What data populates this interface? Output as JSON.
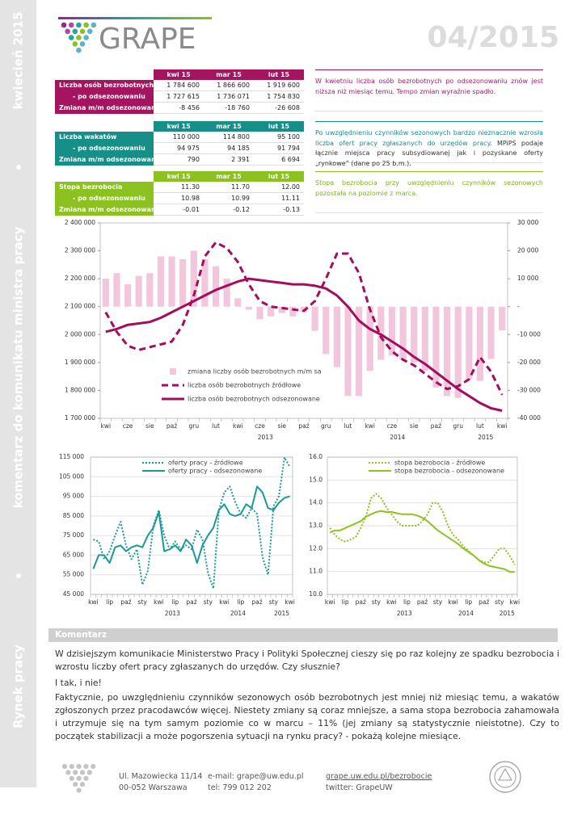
{
  "sidebar": {
    "date": "kwiecień 2015",
    "subject": "komentarz do komunikatu ministra pracy",
    "section": "Rynek pracy"
  },
  "header": {
    "logo": "GRAPE",
    "issue": "04/2015"
  },
  "tables": [
    {
      "columns": [
        "kwi 15",
        "mar 15",
        "lut 15"
      ],
      "rows": [
        {
          "label": "Liczba osób bezrobotnych",
          "values": [
            "1 784 600",
            "1 866 600",
            "1 919 600"
          ]
        },
        {
          "label": "- po odsezonowaniu",
          "values": [
            "1 727 615",
            "1 736 071",
            "1 754 830"
          ]
        },
        {
          "label": "Zmiana m/m odsezonowana",
          "values": [
            "-8 456",
            "-18 760",
            "-26 608"
          ]
        }
      ],
      "comment": [
        "W kwietniu liczba osób bezrobotnych po odsezonowaniu znów jest niższa niż miesiąc temu. Tempo zmian wyraźnie spadło."
      ]
    },
    {
      "columns": [
        "kwi 15",
        "mar 15",
        "lut 15"
      ],
      "rows": [
        {
          "label": "Liczba wakatów",
          "values": [
            "110 000",
            "114 800",
            "95 100"
          ]
        },
        {
          "label": "- po odsezonowaniu",
          "values": [
            "94 975",
            "94 185",
            "91 794"
          ]
        },
        {
          "label": "Zmiana m/m odsezonowana",
          "values": [
            "790",
            "2 391",
            "6 694"
          ]
        }
      ],
      "comment": [
        "Po uwzględnieniu czynników sezonowych bardzo nieznacznie wzrosła liczba ofert pracy zgłaszanych do urzędów pracy.",
        "MPiPS podaje łącznie miejsca pracy subsydiowanej jak i pozyskane oferty „rynkowe” (dane po 25 b.m.)."
      ]
    },
    {
      "columns": [
        "kwi 15",
        "mar 15",
        "lut 15"
      ],
      "rows": [
        {
          "label": "Stopa bezrobocia",
          "values": [
            "11.30",
            "11.70",
            "12.00"
          ]
        },
        {
          "label": "- po odsezonowaniu",
          "values": [
            "10.98",
            "10.99",
            "11.11"
          ]
        },
        {
          "label": "Zmiana m/m odsezonowana",
          "values": [
            "-0.01",
            "-0.12",
            "-0.13"
          ]
        }
      ],
      "comment": [
        "Stopa bezrobocia przy uwzględnieniu czynników sezonowych pozostała na poziomie z marca."
      ]
    }
  ],
  "chart_data": [
    {
      "type": "combo",
      "grid": false,
      "categories": [
        "kwi",
        null,
        "cze",
        null,
        "sie",
        null,
        "paź",
        null,
        "gru",
        null,
        "lut",
        null,
        "kwi",
        null,
        "cze",
        null,
        "sie",
        null,
        "paź",
        null,
        "gru",
        null,
        "lut",
        null,
        "kwi",
        null,
        "cze",
        null,
        "sie",
        null,
        "paź",
        null,
        "gru",
        null,
        "lut",
        null,
        "kwi"
      ],
      "year_labels": [
        "2013",
        "2014",
        "2015"
      ],
      "ylim": [
        1700000,
        2400000
      ],
      "yticks": [
        {
          "value": 1700000,
          "label": "1 700 000"
        },
        {
          "value": 1800000,
          "label": "1 800 000"
        },
        {
          "value": 1900000,
          "label": "1 900 000"
        },
        {
          "value": 2000000,
          "label": "2 000 000"
        },
        {
          "value": 2100000,
          "label": "2 100 000"
        },
        {
          "value": 2200000,
          "label": "2 200 000"
        },
        {
          "value": 2300000,
          "label": "2 300 000"
        },
        {
          "value": 2400000,
          "label": "2 400 000"
        }
      ],
      "y2lim": [
        -40000,
        30000
      ],
      "y2ticks": [
        {
          "value": -40000,
          "label": "-40 000"
        },
        {
          "value": -30000,
          "label": "-30 000"
        },
        {
          "value": -20000,
          "label": "-20 000"
        },
        {
          "value": -10000,
          "label": "-10 000"
        },
        {
          "value": 0,
          "label": "-"
        },
        {
          "value": 10000,
          "label": "10 000"
        },
        {
          "value": 20000,
          "label": "20 000"
        },
        {
          "value": 30000,
          "label": "30 000"
        }
      ],
      "series": [
        {
          "name": "zmiana liczby osób bezrobotnych m/m sa",
          "type": "bar",
          "style": "solid",
          "axis": "y2",
          "color": "#f2c6dc",
          "values": [
            10000,
            12000,
            8000,
            11000,
            12000,
            18000,
            18000,
            17000,
            20000,
            17000,
            14500,
            10000,
            3000,
            -1000,
            -4500,
            -3500,
            -2300,
            -3500,
            -2000,
            -8700,
            -17000,
            -21700,
            -32000,
            -32000,
            -23000,
            -19000,
            -17500,
            -19000,
            -20000,
            -23000,
            -29000,
            -32000,
            -32700,
            -26000,
            -26608,
            -18760,
            -8456
          ]
        },
        {
          "name": "liczba osób bezrobotnych źródłowe",
          "type": "line",
          "style": "dashed",
          "color": "#a30d5d",
          "values": [
            2080000,
            2010000,
            1960000,
            1945000,
            1955000,
            1965000,
            1975000,
            2035000,
            2140000,
            2280000,
            2330000,
            2310000,
            2260000,
            2180000,
            2120000,
            2100000,
            2095000,
            2090000,
            2085000,
            2120000,
            2200000,
            2290000,
            2290000,
            2220000,
            2090000,
            1990000,
            1940000,
            1910000,
            1890000,
            1860000,
            1830000,
            1805000,
            1815000,
            1840000,
            1919600,
            1866600,
            1784600
          ]
        },
        {
          "name": "liczba osób bezrobotnych odsezonowane",
          "type": "line",
          "style": "solid",
          "color": "#a30d5d",
          "values": [
            2010000,
            2020000,
            2035000,
            2040000,
            2045000,
            2060000,
            2080000,
            2100000,
            2120000,
            2140000,
            2160000,
            2175000,
            2190000,
            2200000,
            2195000,
            2190000,
            2185000,
            2180000,
            2180000,
            2175000,
            2165000,
            2140000,
            2100000,
            2050000,
            2020000,
            2000000,
            1975000,
            1950000,
            1920000,
            1895000,
            1865000,
            1835000,
            1805000,
            1780000,
            1754830,
            1736071,
            1727615
          ]
        }
      ]
    },
    {
      "type": "line",
      "grid": true,
      "categories": [
        "kwi",
        null,
        null,
        "lip",
        null,
        null,
        "paź",
        null,
        null,
        "sty",
        null,
        null,
        "kwi",
        null,
        null,
        "lip",
        null,
        null,
        "paź",
        null,
        null,
        "sty",
        null,
        null,
        "kwi",
        null,
        null,
        "lip",
        null,
        null,
        "paź",
        null,
        null,
        "sty",
        null,
        null,
        "kwi"
      ],
      "year_labels": [
        "2013",
        "2014",
        "2015"
      ],
      "ylim": [
        45000,
        115000
      ],
      "yticks": [
        {
          "value": 45000,
          "label": "45 000"
        },
        {
          "value": 55000,
          "label": "55 000"
        },
        {
          "value": 65000,
          "label": "65 000"
        },
        {
          "value": 75000,
          "label": "75 000"
        },
        {
          "value": 85000,
          "label": "85 000"
        },
        {
          "value": 95000,
          "label": "95 000"
        },
        {
          "value": 105000,
          "label": "105 000"
        },
        {
          "value": 115000,
          "label": "115 000"
        }
      ],
      "series": [
        {
          "name": "oferty pracy - źródłowe",
          "type": "line",
          "style": "dotted",
          "color": "#1a9a92",
          "values": [
            73000,
            72000,
            63000,
            67000,
            75000,
            82000,
            70000,
            63000,
            68000,
            50000,
            57000,
            80000,
            88000,
            75000,
            68000,
            72000,
            68000,
            70000,
            68000,
            78000,
            73000,
            56000,
            48000,
            88000,
            97000,
            100000,
            92000,
            86000,
            84000,
            89000,
            86000,
            64000,
            55000,
            90000,
            95100,
            114800,
            110000
          ]
        },
        {
          "name": "oferty pracy - odsezonowane",
          "type": "line",
          "style": "solid",
          "color": "#1a9a92",
          "values": [
            58000,
            65000,
            65000,
            61000,
            69000,
            70000,
            67000,
            69000,
            70000,
            69000,
            75000,
            79000,
            87000,
            67000,
            68000,
            70000,
            67000,
            73000,
            70000,
            61000,
            70000,
            75000,
            79000,
            88000,
            91000,
            86000,
            85000,
            86000,
            91000,
            89000,
            100000,
            97000,
            89000,
            88000,
            91794,
            94185,
            94975
          ]
        }
      ]
    },
    {
      "type": "line",
      "grid": true,
      "categories": [
        "kwi",
        null,
        null,
        "lip",
        null,
        null,
        "paź",
        null,
        null,
        "sty",
        null,
        null,
        "kwi",
        null,
        null,
        "lip",
        null,
        null,
        "paź",
        null,
        null,
        "sty",
        null,
        null,
        "kwi",
        null,
        null,
        "lip",
        null,
        null,
        "paź",
        null,
        null,
        "sty",
        null,
        null,
        "kwi"
      ],
      "year_labels": [
        "2013",
        "2014",
        "2015"
      ],
      "ylim": [
        10,
        16
      ],
      "yticks": [
        {
          "value": 10,
          "label": "10.0"
        },
        {
          "value": 11,
          "label": "11.0"
        },
        {
          "value": 12,
          "label": "12.0"
        },
        {
          "value": 13,
          "label": "13.0"
        },
        {
          "value": 14,
          "label": "14.0"
        },
        {
          "value": 15,
          "label": "15.0"
        },
        {
          "value": 16,
          "label": "16.0"
        }
      ],
      "series": [
        {
          "name": "stopa bezrobocia - źródłowe",
          "type": "line",
          "style": "dotted",
          "color": "#8dc21f",
          "values": [
            12.9,
            12.6,
            12.4,
            12.3,
            12.4,
            12.5,
            12.9,
            13.4,
            14.2,
            14.4,
            14.2,
            13.8,
            13.5,
            13.2,
            13.0,
            13.0,
            13.0,
            13.0,
            13.2,
            13.5,
            14.0,
            14.0,
            13.6,
            13.0,
            12.6,
            12.4,
            12.1,
            11.9,
            11.7,
            11.5,
            11.4,
            11.4,
            11.7,
            12.0,
            12.0,
            11.7,
            11.3
          ]
        },
        {
          "name": "stopa bezrobocia - odsezonowane",
          "type": "line",
          "style": "solid",
          "color": "#8dc21f",
          "values": [
            12.7,
            12.8,
            12.8,
            12.9,
            13.0,
            13.1,
            13.2,
            13.4,
            13.5,
            13.6,
            13.65,
            13.6,
            13.6,
            13.55,
            13.5,
            13.5,
            13.5,
            13.45,
            13.35,
            13.2,
            13.0,
            12.8,
            12.65,
            12.5,
            12.35,
            12.2,
            12.0,
            11.85,
            11.7,
            11.5,
            11.35,
            11.25,
            11.2,
            11.15,
            11.11,
            10.99,
            10.98
          ]
        }
      ]
    }
  ],
  "commentary": {
    "heading": "Komentarz",
    "paragraphs": [
      "W dzisiejszym komunikacie Ministerstwo Pracy i Polityki Społecznej cieszy się po raz kolejny ze spadku bezrobocia i wzrostu liczby ofert pracy zgłaszanych do urzędów. Czy słusznie?",
      "I tak, i nie!",
      "Faktycznie, po uwzględnieniu czynników sezonowych osób bezrobotnych jest mniej niż miesiąc temu, a wakatów zgłoszonych przez pracodawców więcej. Niestety zmiany są coraz mniejsze, a sama stopa bezrobocia zahamowała i utrzymuje się na tym samym poziomie co w marcu – 11% (jej zmiany są statystycznie nieistotne). Czy to początek stabilizacji a może pogorszenia sytuacji na rynku pracy? - pokażą kolejne miesiące."
    ]
  },
  "footer": {
    "address": [
      "Ul. Mazowiecka 11/14",
      "00-052 Warszawa"
    ],
    "contact": [
      "e-mail: grape@uw.edu.pl",
      "tel: 799 012 202"
    ],
    "web": [
      "grape.uw.edu.pl/bezrobocie",
      "twitter: GrapeUW"
    ]
  }
}
